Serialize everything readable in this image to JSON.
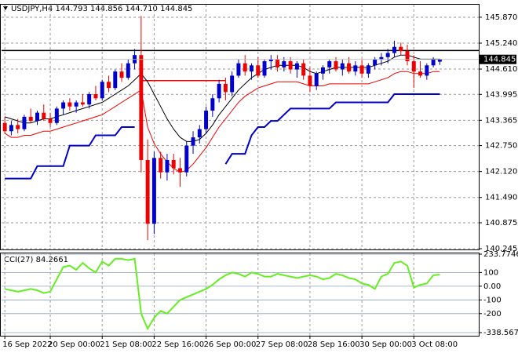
{
  "chart_data": {
    "type": "candlestick",
    "title": "USDJPY,H4  144.793 144.856 144.710 144.845",
    "open": [
      143.3,
      143.1,
      143.25,
      143.15,
      143.45,
      143.35,
      143.55,
      143.4,
      143.3,
      143.65,
      143.8,
      143.7,
      143.8,
      143.75,
      144.0,
      143.9,
      144.3,
      144.15,
      144.55,
      144.4,
      144.75,
      144.95,
      142.4,
      140.85,
      142.45,
      142.1,
      142.4,
      142.2,
      142.1,
      142.75,
      142.95,
      143.15,
      143.6,
      143.9,
      144.25,
      144.05,
      144.45,
      144.75,
      144.55,
      144.7,
      144.45,
      144.8,
      144.85,
      144.65,
      144.8,
      144.6,
      144.75,
      144.45,
      144.2,
      144.5,
      144.65,
      144.8,
      144.6,
      144.75,
      144.55,
      144.7,
      144.5,
      144.7,
      144.85,
      144.9,
      145.0,
      145.15,
      145.05,
      144.8,
      144.55,
      144.45,
      144.7,
      144.79
    ],
    "high": [
      143.45,
      143.35,
      143.4,
      143.5,
      143.65,
      143.6,
      143.75,
      143.55,
      143.7,
      143.85,
      143.9,
      143.85,
      144.0,
      144.05,
      144.2,
      144.35,
      144.45,
      144.6,
      144.75,
      144.85,
      145.1,
      145.9,
      142.9,
      142.6,
      142.6,
      142.55,
      142.55,
      142.45,
      142.85,
      143.1,
      143.25,
      143.7,
      144.0,
      144.35,
      144.4,
      144.55,
      144.85,
      144.95,
      144.75,
      144.9,
      144.85,
      144.95,
      144.95,
      144.9,
      144.9,
      144.8,
      144.85,
      144.65,
      144.55,
      144.7,
      144.85,
      144.9,
      144.85,
      144.9,
      144.8,
      144.85,
      144.75,
      144.9,
      145.0,
      145.1,
      145.3,
      145.25,
      145.2,
      144.95,
      144.8,
      144.75,
      144.9,
      144.86
    ],
    "low": [
      143.05,
      143.0,
      143.05,
      143.1,
      143.3,
      143.25,
      143.35,
      143.2,
      143.25,
      143.5,
      143.6,
      143.55,
      143.7,
      143.65,
      143.85,
      143.85,
      144.05,
      144.1,
      144.3,
      144.35,
      144.6,
      142.1,
      140.45,
      140.6,
      141.95,
      141.9,
      142.05,
      141.75,
      142.0,
      142.55,
      142.8,
      143.05,
      143.45,
      143.8,
      143.85,
      143.95,
      144.4,
      144.45,
      144.35,
      144.4,
      144.4,
      144.6,
      144.55,
      144.55,
      144.5,
      144.4,
      144.35,
      144.05,
      144.1,
      144.35,
      144.5,
      144.55,
      144.45,
      144.5,
      144.45,
      144.4,
      144.4,
      144.6,
      144.7,
      144.75,
      144.9,
      144.95,
      144.7,
      144.15,
      144.4,
      144.35,
      144.65,
      144.71
    ],
    "close": [
      143.1,
      143.25,
      143.15,
      143.45,
      143.35,
      143.55,
      143.4,
      143.3,
      143.65,
      143.8,
      143.7,
      143.8,
      143.75,
      144.0,
      143.9,
      144.3,
      144.15,
      144.55,
      144.4,
      144.75,
      144.95,
      142.4,
      140.85,
      142.45,
      142.1,
      142.4,
      142.2,
      142.1,
      142.75,
      142.95,
      143.15,
      143.6,
      143.9,
      144.25,
      144.05,
      144.45,
      144.75,
      144.55,
      144.7,
      144.45,
      144.8,
      144.85,
      144.65,
      144.8,
      144.6,
      144.75,
      144.45,
      144.2,
      144.5,
      144.65,
      144.8,
      144.6,
      144.75,
      144.55,
      144.7,
      144.5,
      144.7,
      144.85,
      144.9,
      145.0,
      145.15,
      145.05,
      144.8,
      144.55,
      144.45,
      144.7,
      144.85,
      144.85
    ],
    "up_color": "#0000cc",
    "down_color": "#ee0000",
    "xlim": [
      -0.5,
      73
    ],
    "xticks": [
      {
        "value": 0,
        "label": "16 Sep 2022"
      },
      {
        "value": 7,
        "label": "20 Sep 00:00"
      },
      {
        "value": 15,
        "label": "21 Sep 08:00"
      },
      {
        "value": 23,
        "label": "22 Sep 16:00"
      },
      {
        "value": 31,
        "label": "26 Sep 00:00"
      },
      {
        "value": 39,
        "label": "27 Sep 08:00"
      },
      {
        "value": 47,
        "label": "28 Sep 16:00"
      },
      {
        "value": 55,
        "label": "30 Sep 00:00"
      },
      {
        "value": 63,
        "label": "3 Oct 08:00"
      }
    ],
    "ylim": [
      140.226,
      146.174
    ],
    "yticks": [
      {
        "value": 145.87,
        "label": "145.870"
      },
      {
        "value": 145.24,
        "label": "145.240"
      },
      {
        "value": 144.61,
        "label": "144.610"
      },
      143.995,
      143.365,
      {
        "value": 142.75,
        "label": "142.750"
      },
      {
        "value": 142.12,
        "label": "142.120"
      },
      {
        "value": 141.49,
        "label": "141.490"
      },
      140.875,
      140.245
    ],
    "grid": true,
    "last_price": 144.845,
    "hline": {
      "value": 145.06,
      "color": "#000000"
    },
    "level_line": {
      "value": 144.33,
      "x": [
        21,
        34
      ],
      "color": "#ee0000"
    },
    "series": [
      {
        "color": "#000000",
        "values": [
          143.45,
          143.4,
          143.35,
          143.3,
          143.3,
          143.35,
          143.4,
          143.4,
          143.45,
          143.5,
          143.55,
          143.6,
          143.65,
          143.7,
          143.75,
          143.8,
          143.9,
          144.0,
          144.1,
          144.2,
          144.35,
          144.5,
          144.3,
          144.0,
          143.7,
          143.4,
          143.15,
          142.95,
          142.85,
          142.85,
          142.9,
          143.05,
          143.25,
          143.5,
          143.7,
          143.9,
          144.1,
          144.25,
          144.4,
          144.5,
          144.6,
          144.65,
          144.7,
          144.7,
          144.7,
          144.7,
          144.65,
          144.55,
          144.5,
          144.55,
          144.6,
          144.65,
          144.65,
          144.65,
          144.65,
          144.65,
          144.65,
          144.7,
          144.75,
          144.8,
          144.9,
          144.95,
          144.95,
          144.9,
          144.85,
          144.85,
          144.85,
          144.85
        ]
      },
      {
        "color": "#ee0000",
        "values": [
          143.05,
          142.95,
          142.95,
          143.0,
          143.0,
          143.05,
          143.1,
          143.1,
          143.15,
          143.2,
          143.25,
          143.3,
          143.35,
          143.4,
          143.45,
          143.5,
          143.6,
          143.7,
          143.8,
          143.9,
          144.0,
          144.1,
          143.2,
          142.8,
          142.55,
          142.35,
          142.2,
          142.1,
          142.15,
          142.3,
          142.5,
          142.7,
          142.95,
          143.2,
          143.4,
          143.6,
          143.8,
          143.95,
          144.05,
          144.15,
          144.2,
          144.25,
          144.3,
          144.3,
          144.3,
          144.3,
          144.25,
          144.2,
          144.2,
          144.2,
          144.25,
          144.25,
          144.25,
          144.25,
          144.25,
          144.25,
          144.25,
          144.3,
          144.35,
          144.4,
          144.5,
          144.55,
          144.55,
          144.5,
          144.5,
          144.5,
          144.55,
          144.55
        ]
      },
      {
        "color": "#0000cc",
        "values": [
          141.95,
          141.95,
          141.95,
          141.95,
          141.95,
          142.25,
          142.25,
          142.25,
          142.25,
          142.25,
          142.75,
          142.75,
          142.75,
          142.75,
          143.0,
          143.0,
          143.0,
          143.0,
          143.2,
          143.2,
          143.2,
          null,
          null,
          null,
          null,
          null,
          null,
          null,
          null,
          null,
          null,
          null,
          null,
          null,
          142.3,
          142.55,
          142.55,
          142.55,
          143.0,
          143.2,
          143.2,
          143.35,
          143.35,
          143.5,
          143.65,
          143.65,
          143.65,
          143.65,
          143.65,
          143.65,
          143.65,
          143.8,
          143.8,
          143.8,
          143.8,
          143.8,
          143.8,
          143.8,
          143.8,
          143.8,
          144.0,
          144.0,
          144.0,
          144.0,
          144.0,
          144.0,
          144.0,
          144.0
        ]
      }
    ],
    "indicator": {
      "title": "CCI(27) 84.2661",
      "color": "#66ee22",
      "values": [
        -20,
        -30,
        -40,
        -30,
        -20,
        -30,
        -50,
        -40,
        50,
        140,
        150,
        120,
        170,
        130,
        100,
        180,
        150,
        200,
        200,
        190,
        200,
        -200,
        -310,
        -230,
        -180,
        -200,
        -150,
        -100,
        -80,
        -60,
        -40,
        -20,
        10,
        50,
        80,
        100,
        90,
        70,
        100,
        90,
        70,
        70,
        90,
        80,
        70,
        60,
        70,
        80,
        70,
        50,
        60,
        90,
        80,
        60,
        50,
        20,
        10,
        -20,
        70,
        90,
        170,
        180,
        150,
        -10,
        10,
        20,
        80,
        84.2661
      ],
      "ylim": [
        -338.5679,
        233.7746
      ],
      "yticks": [
        233.7746,
        100,
        {
          "value": 0,
          "label": "0.00"
        },
        -100,
        -200,
        -338.5679
      ]
    }
  }
}
